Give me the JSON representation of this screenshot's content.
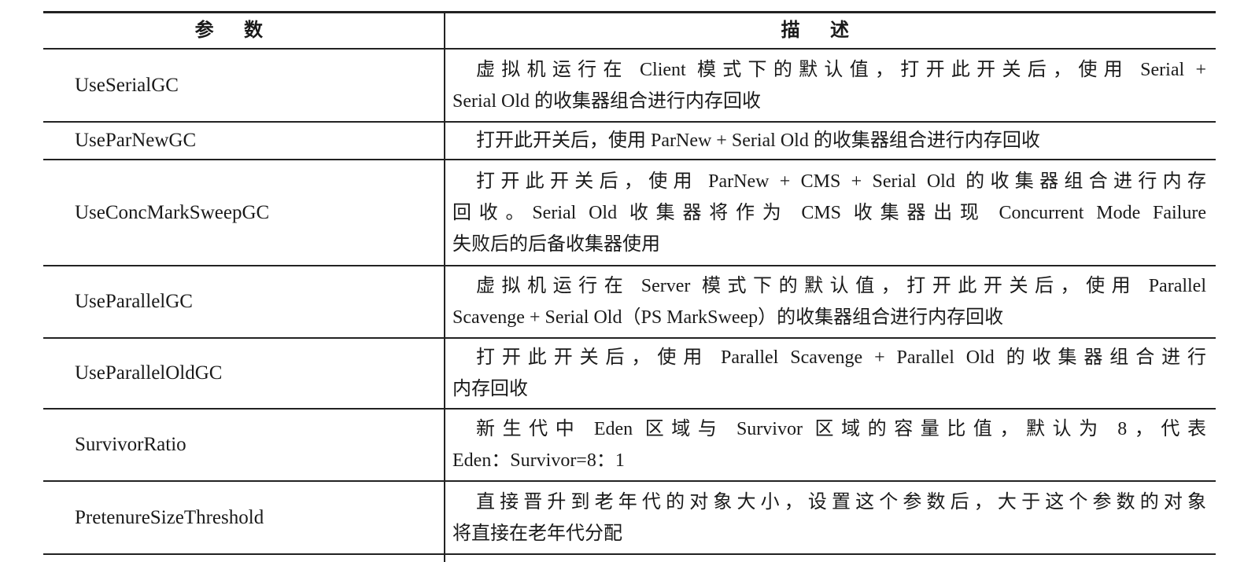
{
  "table": {
    "headers": [
      "参数",
      "描述"
    ],
    "rows": [
      {
        "param": "UseSerialGC",
        "desc": [
          "虚拟机运行在 Client 模式下的默认值，打开此开关后，使用 Serial +",
          "Serial Old 的收集器组合进行内存回收"
        ]
      },
      {
        "param": "UseParNewGC",
        "desc": [
          "打开此开关后，使用 ParNew + Serial Old 的收集器组合进行内存回收"
        ]
      },
      {
        "param": "UseConcMarkSweepGC",
        "desc": [
          "打开此开关后，使用 ParNew + CMS + Serial Old 的收集器组合进行内存",
          "回收。Serial Old 收集器将作为 CMS 收集器出现 Concurrent Mode Failure",
          "失败后的后备收集器使用"
        ]
      },
      {
        "param": "UseParallelGC",
        "desc": [
          "虚拟机运行在 Server 模式下的默认值，打开此开关后，使用 Parallel",
          "Scavenge + Serial Old（PS MarkSweep）的收集器组合进行内存回收"
        ]
      },
      {
        "param": "UseParallelOldGC",
        "desc": [
          "打开此开关后，使用 Parallel Scavenge + Parallel Old 的收集器组合进行",
          "内存回收"
        ]
      },
      {
        "param": "SurvivorRatio",
        "desc": [
          "新生代中 Eden 区域与 Survivor 区域的容量比值，默认为 8，代表",
          "Eden：Survivor=8：1"
        ]
      },
      {
        "param": "PretenureSizeThreshold",
        "desc": [
          "直接晋升到老年代的对象大小，设置这个参数后，大于这个参数的对象",
          "将直接在老年代分配"
        ]
      }
    ]
  }
}
